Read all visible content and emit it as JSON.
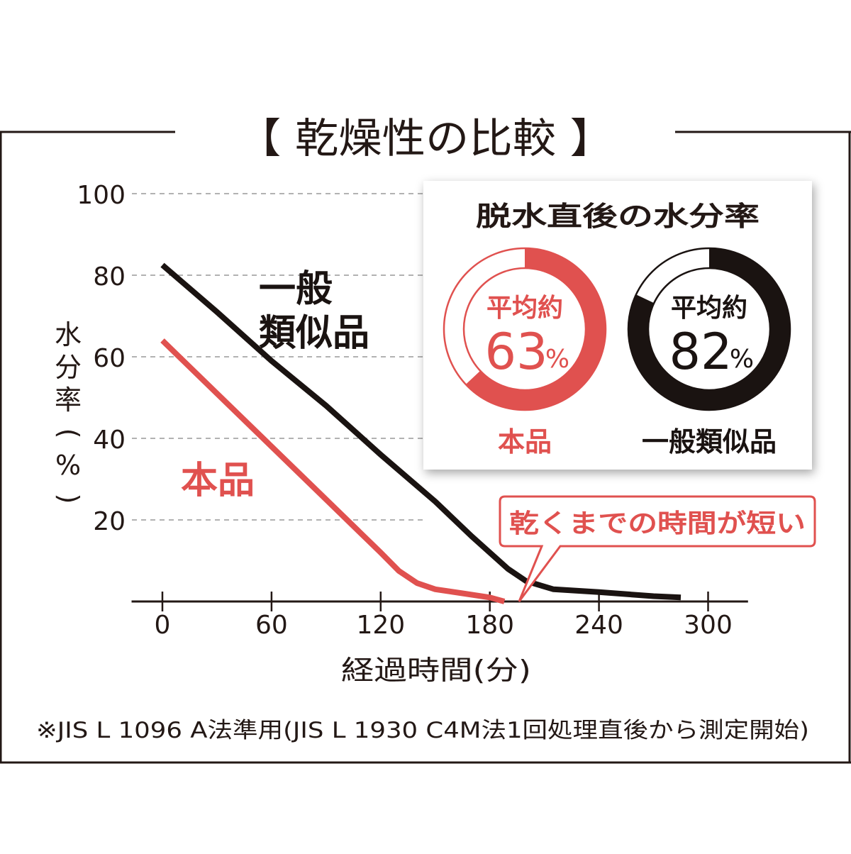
{
  "title": "【 乾燥性の比較 】",
  "footnote": "※JIS L 1096 A法準用(JIS L 1930 C4M法1回処理直後から測定開始)",
  "colors": {
    "product": "#e0514f",
    "general": "#1a1311",
    "grid": "#999999"
  },
  "chart_data": {
    "type": "line",
    "title": "乾燥性の比較",
    "xlabel": "経過時間(分)",
    "ylabel": "水分率(%)",
    "x_ticks": [
      0,
      60,
      120,
      180,
      240,
      300
    ],
    "y_ticks": [
      20,
      40,
      60,
      80,
      100
    ],
    "xlim": [
      -15,
      320
    ],
    "ylim": [
      0,
      100
    ],
    "grid": "horizontal dashed",
    "series": [
      {
        "name": "一般類似品",
        "label": [
          "一般",
          "類似品"
        ],
        "color": "#1a1311",
        "x": [
          0,
          30,
          60,
          90,
          120,
          150,
          170,
          190,
          200,
          215,
          240,
          270,
          285
        ],
        "y": [
          82.5,
          71,
          59,
          48,
          36,
          24.5,
          16,
          8,
          5,
          3,
          2.3,
          1.3,
          1
        ]
      },
      {
        "name": "本品",
        "label": [
          "本品"
        ],
        "color": "#e0514f",
        "x": [
          0,
          30,
          60,
          90,
          120,
          130,
          140,
          150,
          165,
          180,
          188
        ],
        "y": [
          64,
          51,
          38,
          25,
          12,
          7.5,
          4.5,
          3,
          2,
          1,
          0
        ]
      }
    ],
    "annotation": "乾くまでの時間が短い",
    "inset": {
      "title": "脱水直後の水分率",
      "items": [
        {
          "name": "本品",
          "label_top": "平均約",
          "value": 63,
          "value_text": "63",
          "unit": "%",
          "color": "#e0514f"
        },
        {
          "name": "一般類似品",
          "label_top": "平均約",
          "value": 82,
          "value_text": "82",
          "unit": "%",
          "color": "#1a1311"
        }
      ]
    }
  }
}
